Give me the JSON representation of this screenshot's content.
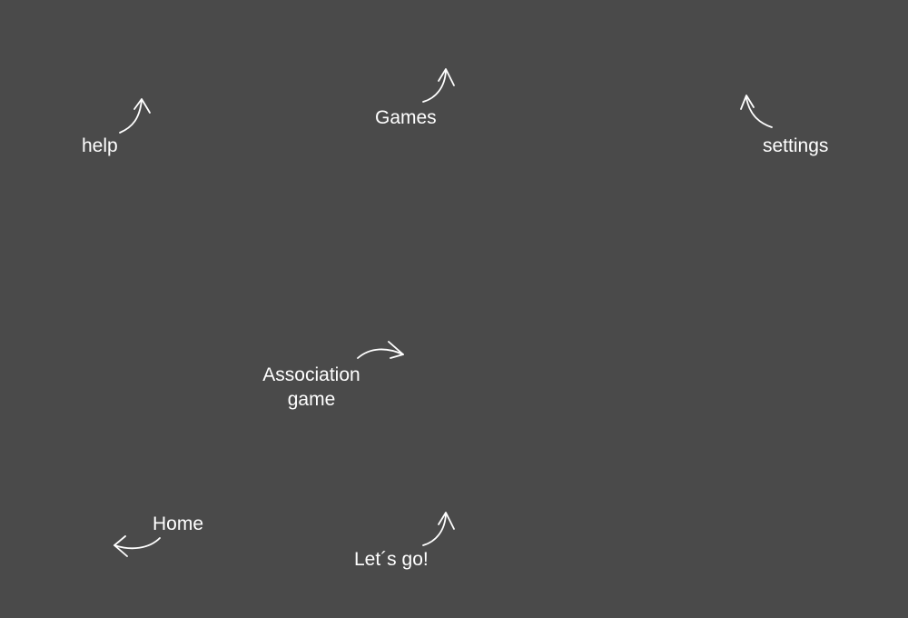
{
  "tooltips": {
    "help": "help",
    "games": "Games",
    "settings": "settings",
    "association_line1": "Association",
    "association_line2": "game",
    "home": "Home",
    "lets_go": "Let´s go!"
  },
  "icons": {
    "arrow": "curved-arrow-icon"
  },
  "colors": {
    "background": "#4a4a4a",
    "text": "#ffffff"
  }
}
